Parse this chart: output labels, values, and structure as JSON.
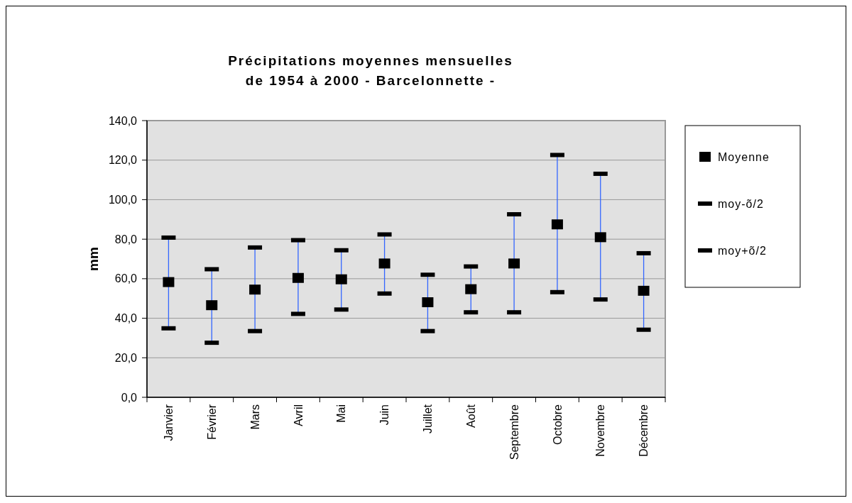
{
  "chart_data": {
    "type": "scatter",
    "title": "Précipitations moyennes mensuelles\nde 1954 à 2000 - Barcelonnette -",
    "ylabel": "mm",
    "categories": [
      "Janvier",
      "Février",
      "Mars",
      "Avril",
      "Mai",
      "Juin",
      "Juillet",
      "Août",
      "Septembre",
      "Octobre",
      "Novembre",
      "Décembre"
    ],
    "ylim": [
      0,
      140
    ],
    "yticks": [
      {
        "value": 0,
        "label": "0,0"
      },
      {
        "value": 20,
        "label": "20,0"
      },
      {
        "value": 40,
        "label": "40,0"
      },
      {
        "value": 60,
        "label": "60,0"
      },
      {
        "value": 80,
        "label": "80,0"
      },
      {
        "value": 100,
        "label": "100,0"
      },
      {
        "value": 120,
        "label": "120,0"
      },
      {
        "value": 140,
        "label": "140,0"
      }
    ],
    "grid": "y",
    "legend": "right",
    "series": [
      {
        "name": "Moyenne",
        "color": "#000000",
        "marker": "square",
        "values": [
          58.3,
          46.6,
          54.5,
          60.4,
          59.7,
          67.7,
          48.1,
          54.7,
          67.7,
          87.5,
          81.0,
          53.9
        ]
      },
      {
        "name": "moy-õ/2",
        "color": "#000000",
        "values": [
          34.9,
          27.6,
          33.5,
          42.2,
          44.4,
          52.5,
          33.5,
          43.0,
          43.0,
          53.2,
          49.5,
          34.2
        ]
      },
      {
        "name": "moy+õ/2",
        "color": "#000000",
        "values": [
          80.8,
          64.8,
          75.8,
          79.5,
          74.4,
          82.4,
          62.0,
          66.2,
          92.6,
          122.6,
          113.1,
          72.9
        ]
      }
    ]
  }
}
